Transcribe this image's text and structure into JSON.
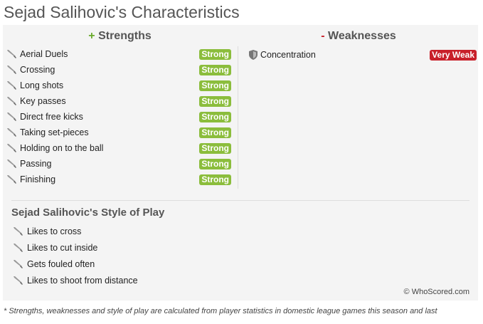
{
  "title": "Sejad Salihovic's Characteristics",
  "strengths": {
    "sign": "+",
    "heading": "Strengths",
    "items": [
      {
        "label": "Aerial Duels",
        "level": "Strong"
      },
      {
        "label": "Crossing",
        "level": "Strong"
      },
      {
        "label": "Long shots",
        "level": "Strong"
      },
      {
        "label": "Key passes",
        "level": "Strong"
      },
      {
        "label": "Direct free kicks",
        "level": "Strong"
      },
      {
        "label": "Taking set-pieces",
        "level": "Strong"
      },
      {
        "label": "Holding on to the ball",
        "level": "Strong"
      },
      {
        "label": "Passing",
        "level": "Strong"
      },
      {
        "label": "Finishing",
        "level": "Strong"
      }
    ]
  },
  "weaknesses": {
    "sign": "-",
    "heading": "Weaknesses",
    "items": [
      {
        "label": "Concentration",
        "level": "Very Weak"
      }
    ]
  },
  "style": {
    "heading": "Sejad Salihovic's Style of Play",
    "items": [
      "Likes to cross",
      "Likes to cut inside",
      "Gets fouled often",
      "Likes to shoot from distance"
    ]
  },
  "copyright": "© WhoScored.com",
  "footnote": "* Strengths, weaknesses and style of play are calculated from player statistics in domestic league games this season and last",
  "colors": {
    "strong": "#8bbd3c",
    "very_weak": "#c8202a"
  }
}
